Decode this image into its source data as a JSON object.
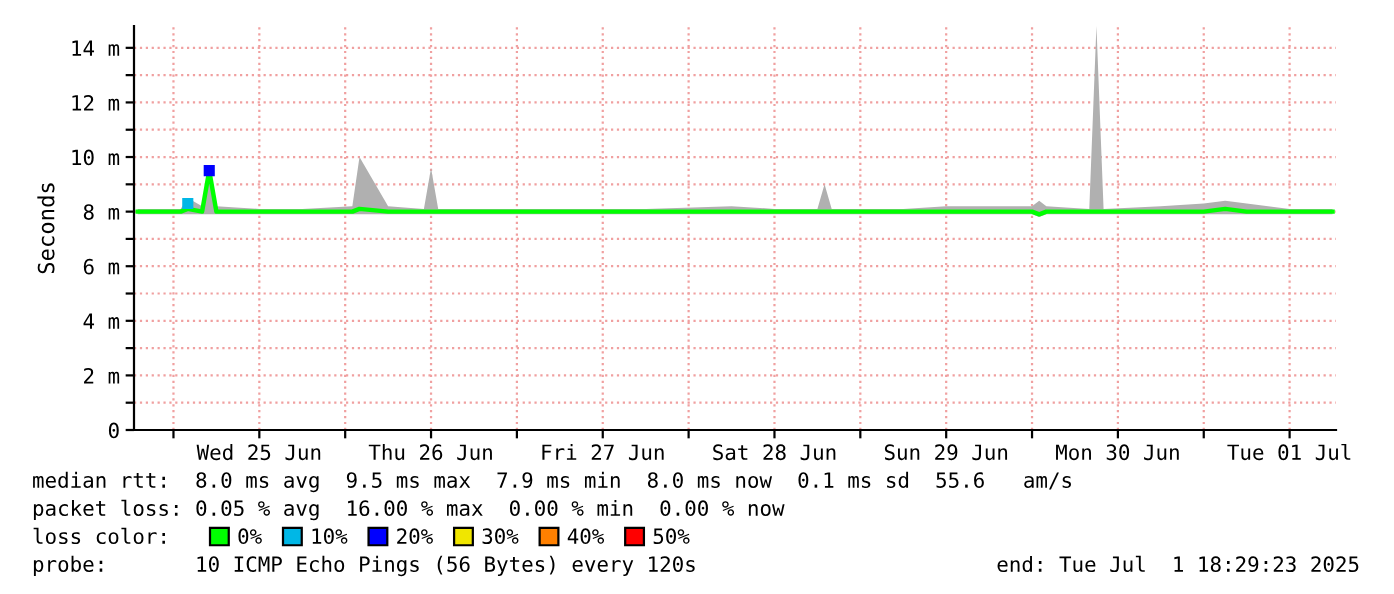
{
  "chart_data": {
    "type": "line",
    "ylabel": "Seconds",
    "xlim": [
      "2025-06-24T18:29",
      "2025-07-01T18:29"
    ],
    "xticks": [
      {
        "value": "2025-06-25T00:00",
        "label": null
      },
      {
        "value": "2025-06-25T12:00",
        "label": "Wed 25 Jun"
      },
      {
        "value": "2025-06-26T00:00",
        "label": null
      },
      {
        "value": "2025-06-26T12:00",
        "label": "Thu 26 Jun"
      },
      {
        "value": "2025-06-27T00:00",
        "label": null
      },
      {
        "value": "2025-06-27T12:00",
        "label": "Fri 27 Jun"
      },
      {
        "value": "2025-06-28T00:00",
        "label": null
      },
      {
        "value": "2025-06-28T12:00",
        "label": "Sat 28 Jun"
      },
      {
        "value": "2025-06-29T00:00",
        "label": null
      },
      {
        "value": "2025-06-29T12:00",
        "label": "Sun 29 Jun"
      },
      {
        "value": "2025-06-30T00:00",
        "label": null
      },
      {
        "value": "2025-06-30T12:00",
        "label": "Mon 30 Jun"
      },
      {
        "value": "2025-07-01T00:00",
        "label": null
      },
      {
        "value": "2025-07-01T12:00",
        "label": "Tue 01 Jul"
      }
    ],
    "ylim": [
      0,
      14.8
    ],
    "yticks": [
      {
        "value": 0,
        "label": "0"
      },
      {
        "value": 1,
        "label": null
      },
      {
        "value": 2,
        "label": "2 m"
      },
      {
        "value": 3,
        "label": null
      },
      {
        "value": 4,
        "label": "4 m"
      },
      {
        "value": 5,
        "label": null
      },
      {
        "value": 6,
        "label": "6 m"
      },
      {
        "value": 7,
        "label": null
      },
      {
        "value": 8,
        "label": "8 m"
      },
      {
        "value": 9,
        "label": null
      },
      {
        "value": 10,
        "label": "10 m"
      },
      {
        "value": 11,
        "label": null
      },
      {
        "value": 12,
        "label": "12 m"
      },
      {
        "value": 13,
        "label": null
      },
      {
        "value": 14,
        "label": "14 m"
      }
    ],
    "grid": true,
    "legend": "bottom",
    "series": [
      {
        "name": "0%",
        "color": "#00ff00",
        "x": [
          "2025-06-24T19:00",
          "2025-06-25T01:00",
          "2025-06-25T02:00",
          "2025-06-25T04:00",
          "2025-06-25T05:00",
          "2025-06-25T06:00",
          "2025-06-25T12:00",
          "2025-06-25T18:00",
          "2025-06-26T01:00",
          "2025-06-26T02:00",
          "2025-06-26T06:00",
          "2025-06-26T11:00",
          "2025-06-26T12:00",
          "2025-06-26T13:00",
          "2025-06-26T18:00",
          "2025-06-27T06:00",
          "2025-06-27T12:00",
          "2025-06-27T18:00",
          "2025-06-28T06:00",
          "2025-06-28T12:00",
          "2025-06-28T18:00",
          "2025-06-28T19:00",
          "2025-06-28T20:00",
          "2025-06-29T06:00",
          "2025-06-29T12:00",
          "2025-06-29T18:00",
          "2025-06-30T00:00",
          "2025-06-30T01:00",
          "2025-06-30T02:00",
          "2025-06-30T08:00",
          "2025-06-30T09:00",
          "2025-06-30T10:00",
          "2025-06-30T18:00",
          "2025-07-01T00:00",
          "2025-07-01T03:00",
          "2025-07-01T06:00",
          "2025-07-01T12:00",
          "2025-07-01T18:00"
        ],
        "values": [
          8.0,
          8.0,
          8.1,
          8.0,
          9.5,
          8.0,
          8.0,
          8.0,
          8.0,
          8.1,
          8.0,
          8.0,
          8.0,
          8.0,
          8.0,
          8.0,
          8.0,
          8.0,
          8.0,
          8.0,
          8.0,
          8.0,
          8.0,
          8.0,
          8.0,
          8.0,
          8.0,
          7.9,
          8.0,
          8.0,
          8.0,
          8.0,
          8.0,
          8.0,
          8.1,
          8.0,
          8.0,
          8.0
        ],
        "lower": [
          7.9,
          7.9,
          7.9,
          7.9,
          7.9,
          7.9,
          7.9,
          7.9,
          7.9,
          7.9,
          7.9,
          7.9,
          7.9,
          7.9,
          7.9,
          7.9,
          7.9,
          7.9,
          7.9,
          7.9,
          7.9,
          7.9,
          7.9,
          7.9,
          7.9,
          7.9,
          7.9,
          7.8,
          7.9,
          7.9,
          7.9,
          7.9,
          7.9,
          7.9,
          7.9,
          7.9,
          7.9,
          7.9
        ],
        "upper": [
          8.1,
          8.1,
          8.5,
          8.2,
          9.5,
          8.2,
          8.1,
          8.1,
          8.2,
          10.0,
          8.2,
          8.1,
          9.6,
          8.1,
          8.1,
          8.1,
          8.1,
          8.1,
          8.2,
          8.1,
          8.1,
          9.0,
          8.1,
          8.1,
          8.2,
          8.2,
          8.2,
          8.4,
          8.2,
          8.1,
          14.8,
          8.1,
          8.2,
          8.3,
          8.4,
          8.3,
          8.1,
          8.1
        ]
      },
      {
        "name": "10%",
        "color": "#00b7e6",
        "type": "scatter",
        "x": [
          "2025-06-25T02:00"
        ],
        "values": [
          8.3
        ]
      },
      {
        "name": "20%",
        "color": "#0000ff",
        "type": "scatter",
        "x": [
          "2025-06-25T05:00"
        ],
        "values": [
          9.5
        ]
      },
      {
        "name": "30%",
        "color": "#f0e600",
        "type": "scatter"
      },
      {
        "name": "40%",
        "color": "#ff8000",
        "type": "scatter"
      },
      {
        "name": "50%",
        "color": "#ff0000",
        "type": "scatter"
      }
    ],
    "annotations": [
      "median rtt:  8.0 ms avg  9.5 ms max  7.9 ms min  8.0 ms now  0.1 ms sd  55.6   am/s",
      "packet loss: 0.05 % avg  16.00 % max  0.00 % min  0.00 % now",
      "loss color:",
      "probe:       10 ICMP Echo Pings (56 Bytes) every 120s",
      "end: Tue Jul  1 18:29:23 2025"
    ]
  }
}
